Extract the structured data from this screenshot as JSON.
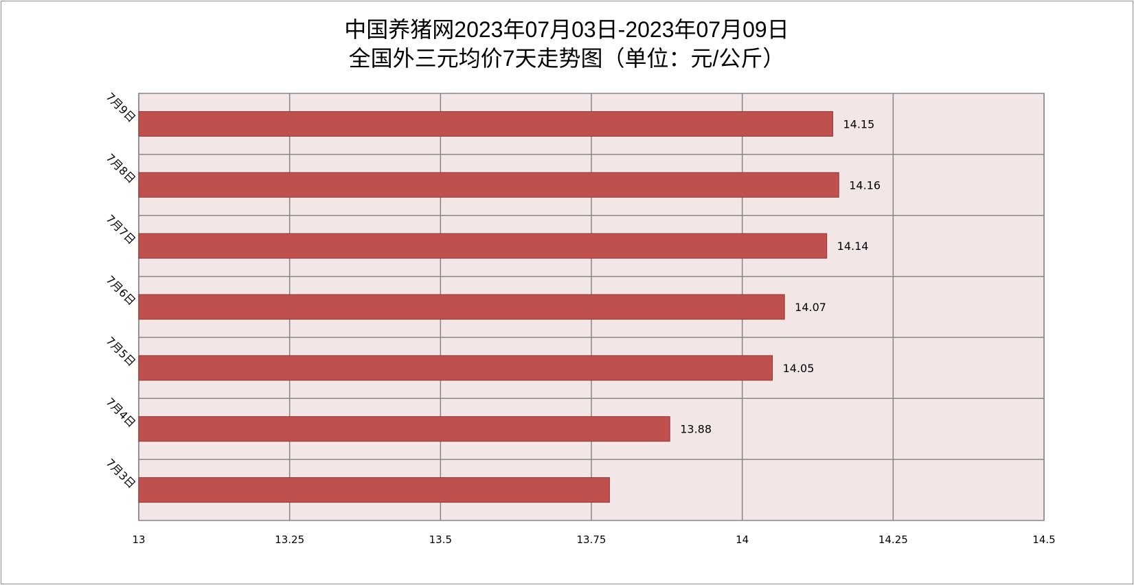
{
  "chart_data": {
    "type": "bar",
    "orientation": "horizontal",
    "title_lines": [
      "中国养猪网2023年07月03日-2023年07月09日",
      "全国外三元均价7天走势图（单位：元/公斤）"
    ],
    "categories": [
      "7月3日",
      "7月4日",
      "7月5日",
      "7月6日",
      "7月7日",
      "7月8日",
      "7月9日"
    ],
    "values": [
      13.78,
      13.88,
      14.05,
      14.07,
      14.14,
      14.16,
      14.15
    ],
    "data_labels": [
      "",
      "13.88",
      "14.05",
      "14.07",
      "14.14",
      "14.16",
      "14.15"
    ],
    "xlim": [
      13,
      14.5
    ],
    "xticks": [
      "13",
      "13.25",
      "13.5",
      "13.75",
      "14",
      "14.25",
      "14.5"
    ],
    "grid": true,
    "legend": "none",
    "bar_color": "#c0504d",
    "bar_border_color": "#8c3836",
    "plot_background": "#f2e6e6",
    "grid_color": "#868686"
  }
}
